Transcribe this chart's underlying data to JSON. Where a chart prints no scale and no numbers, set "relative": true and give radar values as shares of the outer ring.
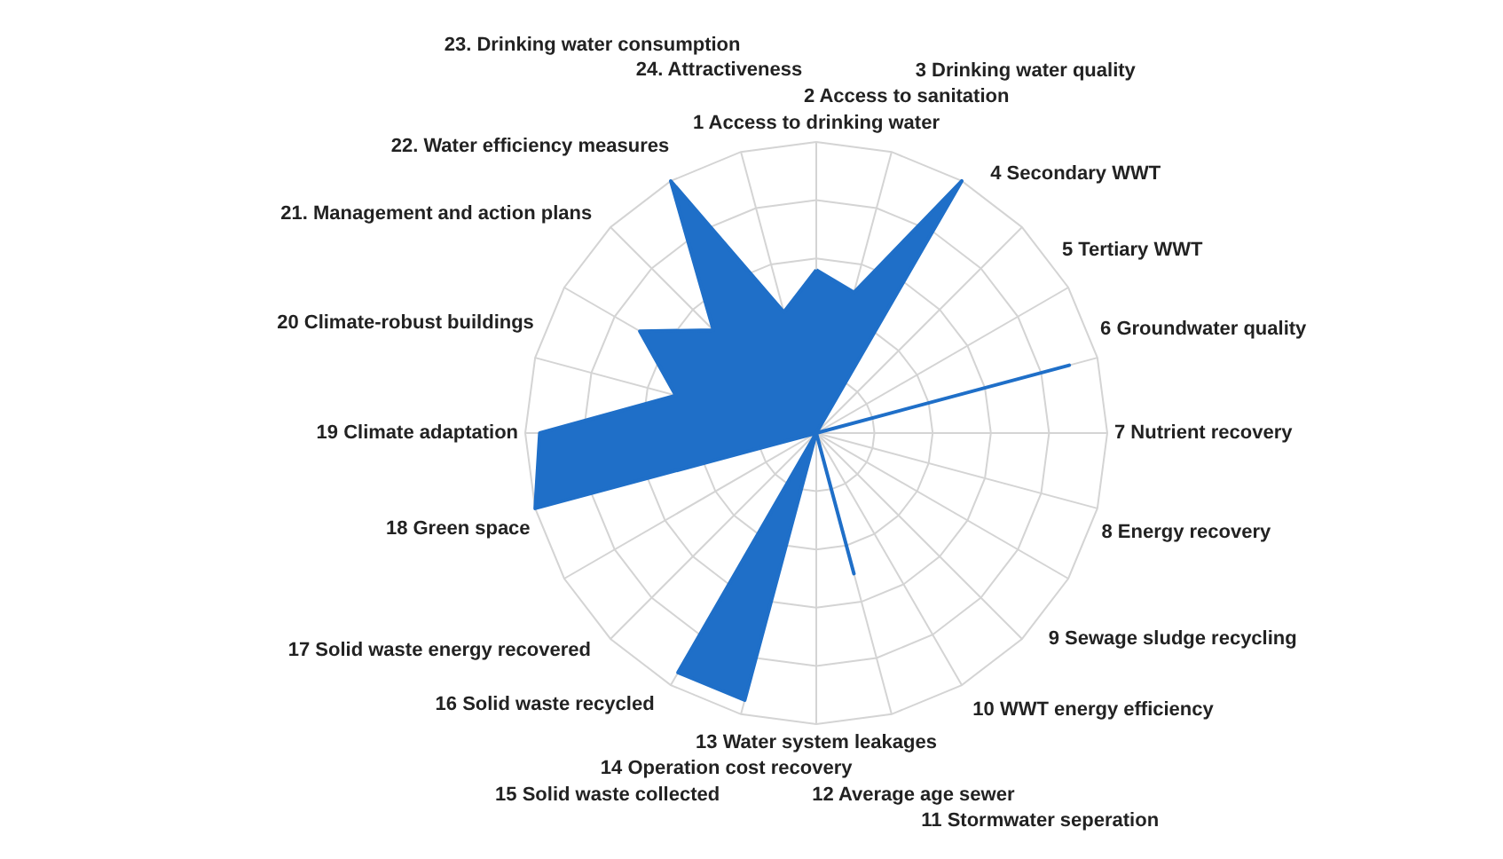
{
  "chart_data": {
    "type": "radar",
    "relative": true,
    "grid": true,
    "categories": [
      "1 Access to drinking water",
      "2 Access to sanitation",
      "3 Drinking water quality",
      "4 Secondary WWT",
      "5 Tertiary WWT",
      "6 Groundwater quality",
      "7 Nutrient recovery",
      "8 Energy recovery",
      "9 Sewage sludge recycling",
      "10 WWT energy efficiency",
      "11 Stormwater seperation",
      "12 Average age sewer",
      "13 Water system leakages",
      "14 Operation cost recovery",
      "15 Solid waste collected",
      "16 Solid waste recycled",
      "17 Solid waste energy recovered",
      "18 Green space",
      "19 Climate adaptation",
      "20 Climate-robust buildings",
      "21. Management and action plans",
      "22. Water efficiency measures",
      "23. Drinking water consumption",
      "24. Attractiveness"
    ],
    "series": [
      {
        "color": "#1f6fc8",
        "values": [
          0.56,
          0.5,
          1.0,
          0,
          0,
          0.9,
          0,
          0,
          0,
          0,
          0,
          0.5,
          0,
          0.95,
          0.95,
          0,
          0,
          1.0,
          0.95,
          0.5,
          0.7,
          0.5,
          1.0,
          0.43
        ]
      }
    ]
  }
}
